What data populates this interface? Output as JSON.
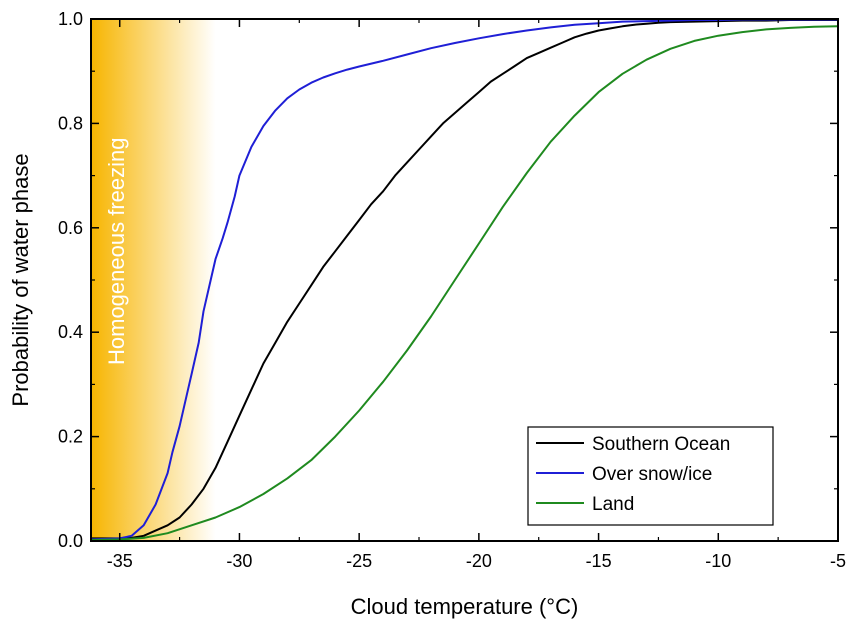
{
  "chart_data": {
    "type": "line",
    "xlabel": "Cloud temperature (°C)",
    "ylabel": "Probability of water phase",
    "xlim": [
      -36.2,
      -5
    ],
    "ylim": [
      0,
      1.0
    ],
    "x_ticks": [
      -35,
      -30,
      -25,
      -20,
      -15,
      -10,
      -5
    ],
    "x_tick_labels": [
      "-35",
      "-30",
      "-25",
      "-20",
      "-15",
      "-10",
      "-5"
    ],
    "y_ticks": [
      0,
      0.2,
      0.4,
      0.6,
      0.8,
      1.0
    ],
    "y_tick_labels": [
      "0.0",
      "0.2",
      "0.4",
      "0.6",
      "0.8",
      "1.0"
    ],
    "grid": false,
    "legend_position": "bottom-right",
    "annotation": {
      "text": "Homogeneous freezing",
      "x_range": [
        -36.2,
        -31
      ],
      "color_strong": "#f7b500",
      "color_fade": "#ffffff"
    },
    "series": [
      {
        "name": "Southern Ocean",
        "color": "#000000",
        "x": [
          -36.2,
          -35,
          -34.5,
          -34,
          -33.5,
          -33,
          -32.5,
          -32,
          -31.5,
          -31,
          -30.5,
          -30,
          -29.5,
          -29,
          -28.5,
          -28,
          -27.5,
          -27,
          -26.5,
          -26,
          -25.5,
          -25,
          -24.5,
          -24,
          -23.5,
          -23,
          -22.5,
          -22,
          -21.5,
          -21,
          -20.5,
          -20,
          -19.5,
          -19,
          -18.5,
          -18,
          -17.5,
          -17,
          -16.5,
          -16,
          -15.5,
          -15,
          -14.5,
          -14,
          -13.5,
          -13,
          -12.5,
          -12,
          -11,
          -10,
          -9,
          -8,
          -7,
          -6,
          -5
        ],
        "y": [
          0.005,
          0.005,
          0.006,
          0.01,
          0.02,
          0.03,
          0.045,
          0.07,
          0.1,
          0.14,
          0.19,
          0.24,
          0.29,
          0.34,
          0.38,
          0.42,
          0.455,
          0.49,
          0.525,
          0.555,
          0.585,
          0.615,
          0.645,
          0.67,
          0.7,
          0.725,
          0.75,
          0.775,
          0.8,
          0.82,
          0.84,
          0.86,
          0.88,
          0.895,
          0.91,
          0.925,
          0.935,
          0.945,
          0.955,
          0.965,
          0.972,
          0.978,
          0.982,
          0.986,
          0.989,
          0.991,
          0.993,
          0.994,
          0.995,
          0.996,
          0.997,
          0.997,
          0.998,
          0.998,
          0.998
        ]
      },
      {
        "name": "Over snow/ice",
        "color": "#1f1fd6",
        "x": [
          -36.2,
          -35,
          -34.5,
          -34,
          -33.5,
          -33,
          -32.8,
          -32.5,
          -32.2,
          -32,
          -31.7,
          -31.5,
          -31.2,
          -31,
          -30.7,
          -30.5,
          -30.2,
          -30,
          -29.5,
          -29,
          -28.5,
          -28,
          -27.5,
          -27,
          -26.5,
          -26,
          -25.5,
          -25,
          -24,
          -23,
          -22,
          -21,
          -20,
          -19,
          -18,
          -17,
          -16,
          -15,
          -14,
          -13,
          -12,
          -11,
          -10,
          -9,
          -8,
          -7,
          -6,
          -5
        ],
        "y": [
          0.003,
          0.005,
          0.01,
          0.03,
          0.07,
          0.13,
          0.17,
          0.22,
          0.28,
          0.32,
          0.38,
          0.44,
          0.5,
          0.54,
          0.58,
          0.61,
          0.66,
          0.7,
          0.755,
          0.795,
          0.825,
          0.848,
          0.865,
          0.878,
          0.888,
          0.896,
          0.903,
          0.909,
          0.92,
          0.932,
          0.944,
          0.954,
          0.963,
          0.971,
          0.978,
          0.984,
          0.989,
          0.992,
          0.995,
          0.996,
          0.997,
          0.998,
          0.998,
          0.999,
          0.999,
          0.999,
          0.999,
          0.999
        ]
      },
      {
        "name": "Land",
        "color": "#1f8a1f",
        "x": [
          -36.2,
          -35,
          -34,
          -33,
          -32,
          -31,
          -30,
          -29,
          -28,
          -27,
          -26,
          -25,
          -24,
          -23,
          -22,
          -21,
          -20,
          -19,
          -18,
          -17,
          -16,
          -15,
          -14,
          -13,
          -12,
          -11,
          -10,
          -9,
          -8,
          -7,
          -6,
          -5
        ],
        "y": [
          0.002,
          0.003,
          0.006,
          0.015,
          0.03,
          0.045,
          0.065,
          0.09,
          0.12,
          0.155,
          0.2,
          0.25,
          0.305,
          0.365,
          0.43,
          0.5,
          0.57,
          0.64,
          0.705,
          0.765,
          0.815,
          0.86,
          0.895,
          0.922,
          0.943,
          0.958,
          0.968,
          0.975,
          0.98,
          0.983,
          0.985,
          0.986
        ]
      }
    ]
  }
}
